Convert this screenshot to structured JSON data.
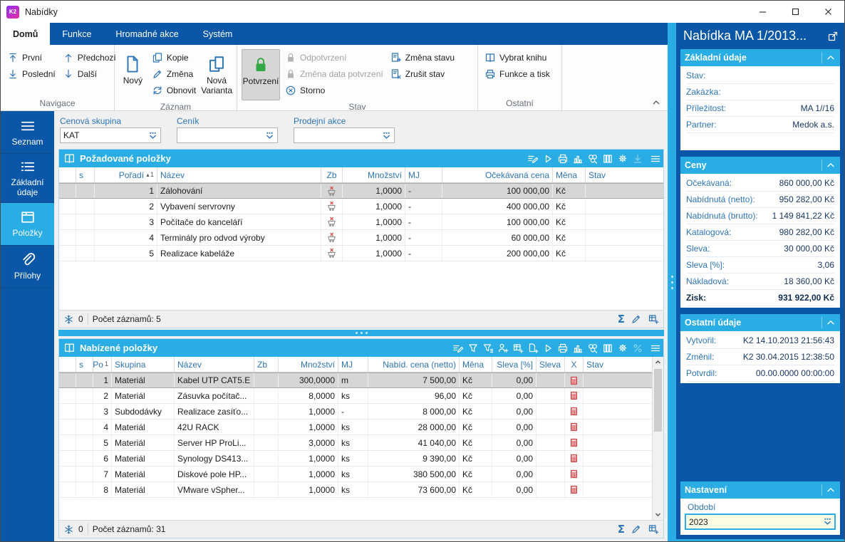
{
  "window": {
    "title": "Nabídky",
    "logo": "K2"
  },
  "ribbon": {
    "tabs": [
      {
        "label": "Domů"
      },
      {
        "label": "Funkce"
      },
      {
        "label": "Hromadné akce"
      },
      {
        "label": "Systém"
      }
    ],
    "navigace": {
      "label": "Navigace",
      "first": "První",
      "last": "Poslední",
      "prev": "Předchozí",
      "next": "Další"
    },
    "zaznam": {
      "label": "Záznam",
      "novy": "Nový",
      "kopie": "Kopie",
      "zmena": "Změna",
      "obnovit": "Obnovit",
      "nova_varianta": "Nová Varianta"
    },
    "stav": {
      "label": "Stav",
      "potvrzeni": "Potvrzení",
      "odpotvrzeni": "Odpotvrzení",
      "zmena_data": "Změna data potvrzení",
      "storno": "Storno",
      "zmena_stavu": "Změna stavu",
      "zrusit_stav": "Zrušit stav"
    },
    "ostatni": {
      "label": "Ostatní",
      "vybrat_knihu": "Vybrat knihu",
      "funkce_tisk": "Funkce a tisk"
    }
  },
  "sidebar": {
    "items": [
      {
        "label": "Seznam"
      },
      {
        "label": "Základní údaje"
      },
      {
        "label": "Položky"
      },
      {
        "label": "Přílohy"
      }
    ]
  },
  "filters": [
    {
      "label": "Cenová skupina",
      "value": "KAT"
    },
    {
      "label": "Ceník",
      "value": ""
    },
    {
      "label": "Prodejní akce",
      "value": ""
    }
  ],
  "panel1": {
    "title": "Požadované položky",
    "columns": {
      "s": "s",
      "poradi": "Pořadí",
      "sort": "1",
      "nazev": "Název",
      "zb": "Zb",
      "mnozstvi": "Množství",
      "mj": "MJ",
      "cena": "Očekávaná cena",
      "mena": "Měna",
      "stav": "Stav"
    },
    "rows": [
      {
        "poradi": "1",
        "nazev": "Zálohování",
        "mnozstvi": "1,0000",
        "mj": "-",
        "cena": "100 000,00",
        "mena": "Kč"
      },
      {
        "poradi": "2",
        "nazev": "Vybavení servrovny",
        "mnozstvi": "1,0000",
        "mj": "-",
        "cena": "400 000,00",
        "mena": "Kč"
      },
      {
        "poradi": "3",
        "nazev": "Počítače do kanceláří",
        "mnozstvi": "1,0000",
        "mj": "-",
        "cena": "100 000,00",
        "mena": "Kč"
      },
      {
        "poradi": "4",
        "nazev": "Terminály pro odvod výroby",
        "mnozstvi": "1,0000",
        "mj": "-",
        "cena": "60 000,00",
        "mena": "Kč"
      },
      {
        "poradi": "5",
        "nazev": "Realizace kabeláže",
        "mnozstvi": "1,0000",
        "mj": "-",
        "cena": "200 000,00",
        "mena": "Kč"
      }
    ],
    "footer": {
      "flag_count": "0",
      "records": "Počet záznamů: 5"
    }
  },
  "panel2": {
    "title": "Nabízené položky",
    "columns": {
      "s": "s",
      "po": "Po",
      "sort": "1",
      "skupina": "Skupina",
      "nazev": "Název",
      "zb": "Zb",
      "mnozstvi": "Množství",
      "mj": "MJ",
      "cena": "Nabíd. cena (netto)",
      "mena": "Měna",
      "sleva_pct": "Sleva [%]",
      "sleva": "Sleva",
      "x": "X",
      "stav": "Stav"
    },
    "rows": [
      {
        "po": "1",
        "skupina": "Materiál",
        "nazev": "Kabel UTP CAT5.E",
        "mnozstvi": "300,0000",
        "mj": "m",
        "cena": "7 500,00",
        "mena": "Kč",
        "sleva_pct": "0,00"
      },
      {
        "po": "2",
        "skupina": "Materiál",
        "nazev": "Zásuvka počítač...",
        "mnozstvi": "8,0000",
        "mj": "ks",
        "cena": "96,00",
        "mena": "Kč",
        "sleva_pct": "0,00"
      },
      {
        "po": "3",
        "skupina": "Subdodávky",
        "nazev": "Realizace zasíťo...",
        "mnozstvi": "1,0000",
        "mj": "-",
        "cena": "8 000,00",
        "mena": "Kč",
        "sleva_pct": "0,00"
      },
      {
        "po": "4",
        "skupina": "Materiál",
        "nazev": "42U RACK",
        "mnozstvi": "1,0000",
        "mj": "ks",
        "cena": "28 000,00",
        "mena": "Kč",
        "sleva_pct": "0,00"
      },
      {
        "po": "5",
        "skupina": "Materiál",
        "nazev": "Server HP ProLi...",
        "mnozstvi": "3,0000",
        "mj": "ks",
        "cena": "41 040,00",
        "mena": "Kč",
        "sleva_pct": "0,00"
      },
      {
        "po": "6",
        "skupina": "Materiál",
        "nazev": "Synology DS413...",
        "mnozstvi": "1,0000",
        "mj": "ks",
        "cena": "9 390,00",
        "mena": "Kč",
        "sleva_pct": "0,00"
      },
      {
        "po": "7",
        "skupina": "Materiál",
        "nazev": "Diskové pole HP...",
        "mnozstvi": "1,0000",
        "mj": "ks",
        "cena": "380 500,00",
        "mena": "Kč",
        "sleva_pct": "0,00"
      },
      {
        "po": "8",
        "skupina": "Materiál",
        "nazev": "VMware vSpher...",
        "mnozstvi": "1,0000",
        "mj": "ks",
        "cena": "73 600,00",
        "mena": "Kč",
        "sleva_pct": "0,00"
      }
    ],
    "footer": {
      "flag_count": "0",
      "records": "Počet záznamů: 31"
    }
  },
  "detail": {
    "title": "Nabídka MA 1/2013...",
    "zakladni": {
      "title": "Základní údaje",
      "rows": [
        {
          "label": "Stav:",
          "value": ""
        },
        {
          "label": "Zakázka:",
          "value": ""
        },
        {
          "label": "Příležitost:",
          "value": "MA 1//16"
        },
        {
          "label": "Partner:",
          "value": "Medok a.s."
        }
      ]
    },
    "ceny": {
      "title": "Ceny",
      "rows": [
        {
          "label": "Očekávaná:",
          "value": "860 000,00 Kč"
        },
        {
          "label": "Nabídnutá (netto):",
          "value": "950 282,00 Kč"
        },
        {
          "label": "Nabídnutá (brutto):",
          "value": "1 149 841,22 Kč"
        },
        {
          "label": "Katalogová:",
          "value": "980 282,00 Kč"
        },
        {
          "label": "Sleva:",
          "value": "30 000,00 Kč"
        },
        {
          "label": "Sleva [%]:",
          "value": "3,06"
        },
        {
          "label": "Nákladová:",
          "value": "18 360,00 Kč"
        },
        {
          "label": "Zisk:",
          "value": "931 922,00 Kč"
        }
      ]
    },
    "ostatni": {
      "title": "Ostatní údaje",
      "rows": [
        {
          "label": "Vytvořil:",
          "value": "K2 14.10.2013 21:56:43"
        },
        {
          "label": "Změnil:",
          "value": "K2 30.04.2015 12:38:50"
        },
        {
          "label": "Potvrdil:",
          "value": "00.00.0000 00:00:00"
        }
      ]
    },
    "nastaveni": {
      "title": "Nastavení",
      "field_label": "Období",
      "field_value": "2023"
    }
  },
  "colors": {
    "ribbon_blue": "#0a57a7",
    "accent_cyan": "#29ade4",
    "link_blue": "#2e75b6",
    "value_navy": "#16365f",
    "confirm_green": "#34a845",
    "alert_red": "#d9534f"
  }
}
